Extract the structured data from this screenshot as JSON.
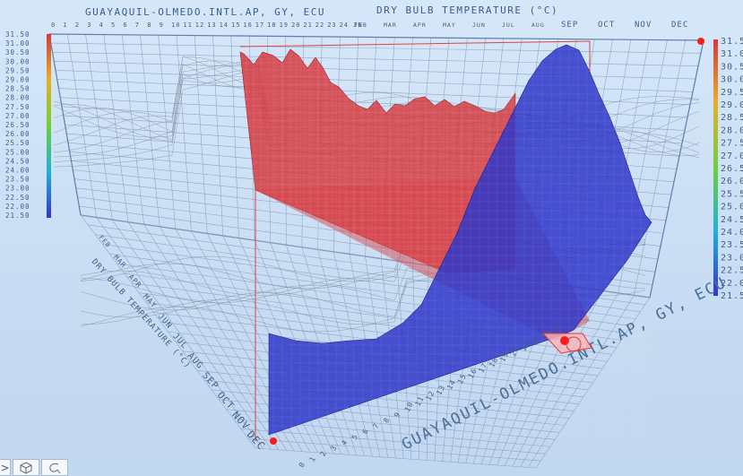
{
  "window": {
    "title_station": "GUAYAQUIL-OLMEDO.INTL.AP, GY, ECU",
    "title_variable": "DRY BULB TEMPERATURE (°C)"
  },
  "axes": {
    "hour_ticks": [
      "0",
      "1",
      "2",
      "3",
      "4",
      "5",
      "6",
      "7",
      "8",
      "9",
      "10",
      "11",
      "12",
      "13",
      "14",
      "15",
      "16",
      "17",
      "18",
      "19",
      "20",
      "21",
      "22",
      "23",
      "24 JN"
    ],
    "month_ticks_top": [
      "FEB",
      "MAR",
      "APR",
      "MAY",
      "JUN",
      "JUL",
      "AUG",
      "SEP",
      "OCT",
      "NOV",
      "DEC"
    ],
    "month_ticks_side": [
      "FEB",
      "MAR",
      "APR",
      "MAY",
      "JUN",
      "JUL",
      "AUG",
      "SEP",
      "OCT",
      "NOV",
      "DEC"
    ],
    "left_scale": [
      "31.50",
      "31.00",
      "30.50",
      "30.00",
      "29.50",
      "29.00",
      "28.50",
      "28.00",
      "27.50",
      "27.00",
      "26.50",
      "26.00",
      "25.50",
      "25.00",
      "24.50",
      "24.00",
      "23.50",
      "23.00",
      "22.50",
      "22.00",
      "21.50"
    ],
    "right_scale": [
      "31.50",
      "31.00",
      "30.50",
      "30.00",
      "29.50",
      "29.00",
      "28.50",
      "28.00",
      "27.50",
      "27.00",
      "26.50",
      "26.00",
      "25.50",
      "25.00",
      "24.50",
      "24.00",
      "23.50",
      "23.00",
      "22.50",
      "22.00",
      "21.50"
    ],
    "side_axis_label": "DRY BULB TEMPERATURE (°C)",
    "front_axis_label": "GUAYAQUIL-OLMEDO.INTL.AP, GY, ECU",
    "front_ticks": [
      "0",
      "1",
      "2",
      "3",
      "4",
      "5",
      "6",
      "7",
      "8",
      "9",
      "10",
      "11",
      "12",
      "13",
      "14",
      "15",
      "16",
      "17",
      "18",
      "19",
      "20",
      "21",
      "22",
      "23",
      "24"
    ]
  },
  "colors": {
    "red_surface": "#d63a3e",
    "blue_surface": "#2f37c9",
    "grid": "#8fa7c4",
    "background": "#cfe2f7"
  },
  "toolbar": {
    "more_label": ">",
    "cube_icon": "cube-view-icon",
    "lasso_icon": "lasso-select-icon"
  }
}
